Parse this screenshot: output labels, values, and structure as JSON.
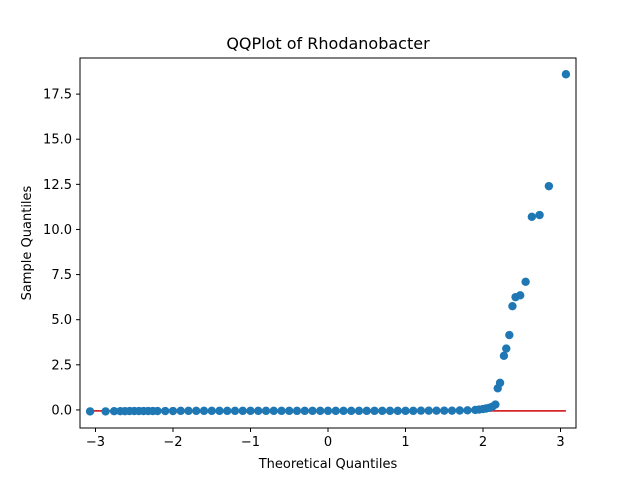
{
  "chart_data": {
    "type": "scatter",
    "title": "QQPlot of Rhodanobacter",
    "xlabel": "Theoretical Quantiles",
    "ylabel": "Sample Quantiles",
    "xlim": [
      -3.2,
      3.2
    ],
    "ylim": [
      -1.0,
      19.5
    ],
    "xticks": [
      -3,
      -2,
      -1,
      0,
      1,
      2,
      3
    ],
    "xtick_labels": [
      "−3",
      "−2",
      "−1",
      "0",
      "1",
      "2",
      "3"
    ],
    "yticks": [
      0.0,
      2.5,
      5.0,
      7.5,
      10.0,
      12.5,
      15.0,
      17.5
    ],
    "ytick_labels": [
      "0.0",
      "2.5",
      "5.0",
      "7.5",
      "10.0",
      "12.5",
      "15.0",
      "17.5"
    ],
    "grid": false,
    "colors": {
      "points": "#1f77b4",
      "line": "#d62728"
    },
    "reference_line": {
      "x": [
        -3.07,
        3.07
      ],
      "y": [
        -0.05,
        -0.05
      ]
    },
    "points": {
      "x": [
        -3.07,
        -2.87,
        -2.76,
        -2.68,
        -2.62,
        -2.56,
        -2.5,
        -2.44,
        -2.38,
        -2.32,
        -2.26,
        -2.2,
        -2.1,
        -2.0,
        -1.9,
        -1.8,
        -1.7,
        -1.6,
        -1.5,
        -1.4,
        -1.3,
        -1.2,
        -1.1,
        -1.0,
        -0.9,
        -0.8,
        -0.7,
        -0.6,
        -0.5,
        -0.4,
        -0.3,
        -0.2,
        -0.1,
        0.0,
        0.1,
        0.2,
        0.3,
        0.4,
        0.5,
        0.6,
        0.7,
        0.8,
        0.9,
        1.0,
        1.1,
        1.2,
        1.3,
        1.4,
        1.5,
        1.6,
        1.7,
        1.8,
        1.9,
        1.95,
        2.0,
        2.04,
        2.08,
        2.12,
        2.16,
        2.19,
        2.22,
        2.27,
        2.3,
        2.34,
        2.38,
        2.42,
        2.48,
        2.55,
        2.63,
        2.73,
        2.85,
        3.07
      ],
      "y": [
        -0.08,
        -0.08,
        -0.07,
        -0.07,
        -0.07,
        -0.06,
        -0.06,
        -0.06,
        -0.06,
        -0.06,
        -0.06,
        -0.06,
        -0.06,
        -0.06,
        -0.05,
        -0.05,
        -0.05,
        -0.05,
        -0.05,
        -0.05,
        -0.05,
        -0.05,
        -0.05,
        -0.05,
        -0.05,
        -0.05,
        -0.05,
        -0.05,
        -0.05,
        -0.05,
        -0.05,
        -0.05,
        -0.05,
        -0.05,
        -0.05,
        -0.05,
        -0.05,
        -0.05,
        -0.05,
        -0.05,
        -0.05,
        -0.05,
        -0.05,
        -0.05,
        -0.05,
        -0.04,
        -0.04,
        -0.04,
        -0.04,
        -0.04,
        -0.03,
        -0.02,
        0.0,
        0.02,
        0.05,
        0.08,
        0.12,
        0.18,
        0.3,
        1.2,
        1.5,
        3.0,
        3.4,
        4.15,
        5.75,
        6.25,
        6.35,
        7.1,
        10.7,
        10.8,
        12.4,
        18.6
      ]
    }
  }
}
